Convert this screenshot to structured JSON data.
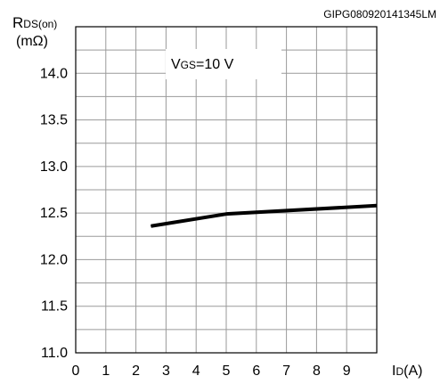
{
  "figure_id": "GIPG080920141345LM",
  "chart_data": {
    "type": "line",
    "y_axis_label": {
      "main": "R",
      "subscript": "DS(on)",
      "unit": "(mΩ)"
    },
    "x_axis_label": {
      "main": "I",
      "subscript": "D",
      "unit": "(A)"
    },
    "annotation": {
      "main": "V",
      "subscript": "GS",
      "rest": "=10 V"
    },
    "x_ticks": [
      "0",
      "1",
      "2",
      "3",
      "4",
      "5",
      "6",
      "7",
      "8",
      "9"
    ],
    "y_ticks": [
      "11.0",
      "11.5",
      "12.0",
      "12.5",
      "13.0",
      "13.5",
      "14.0"
    ],
    "xlim": [
      0,
      10
    ],
    "ylim": [
      11.0,
      14.5
    ],
    "grid": true,
    "series": [
      {
        "x": [
          2.5,
          5.0,
          10.0
        ],
        "y": [
          12.36,
          12.49,
          12.58
        ],
        "color": "#000000"
      }
    ]
  }
}
